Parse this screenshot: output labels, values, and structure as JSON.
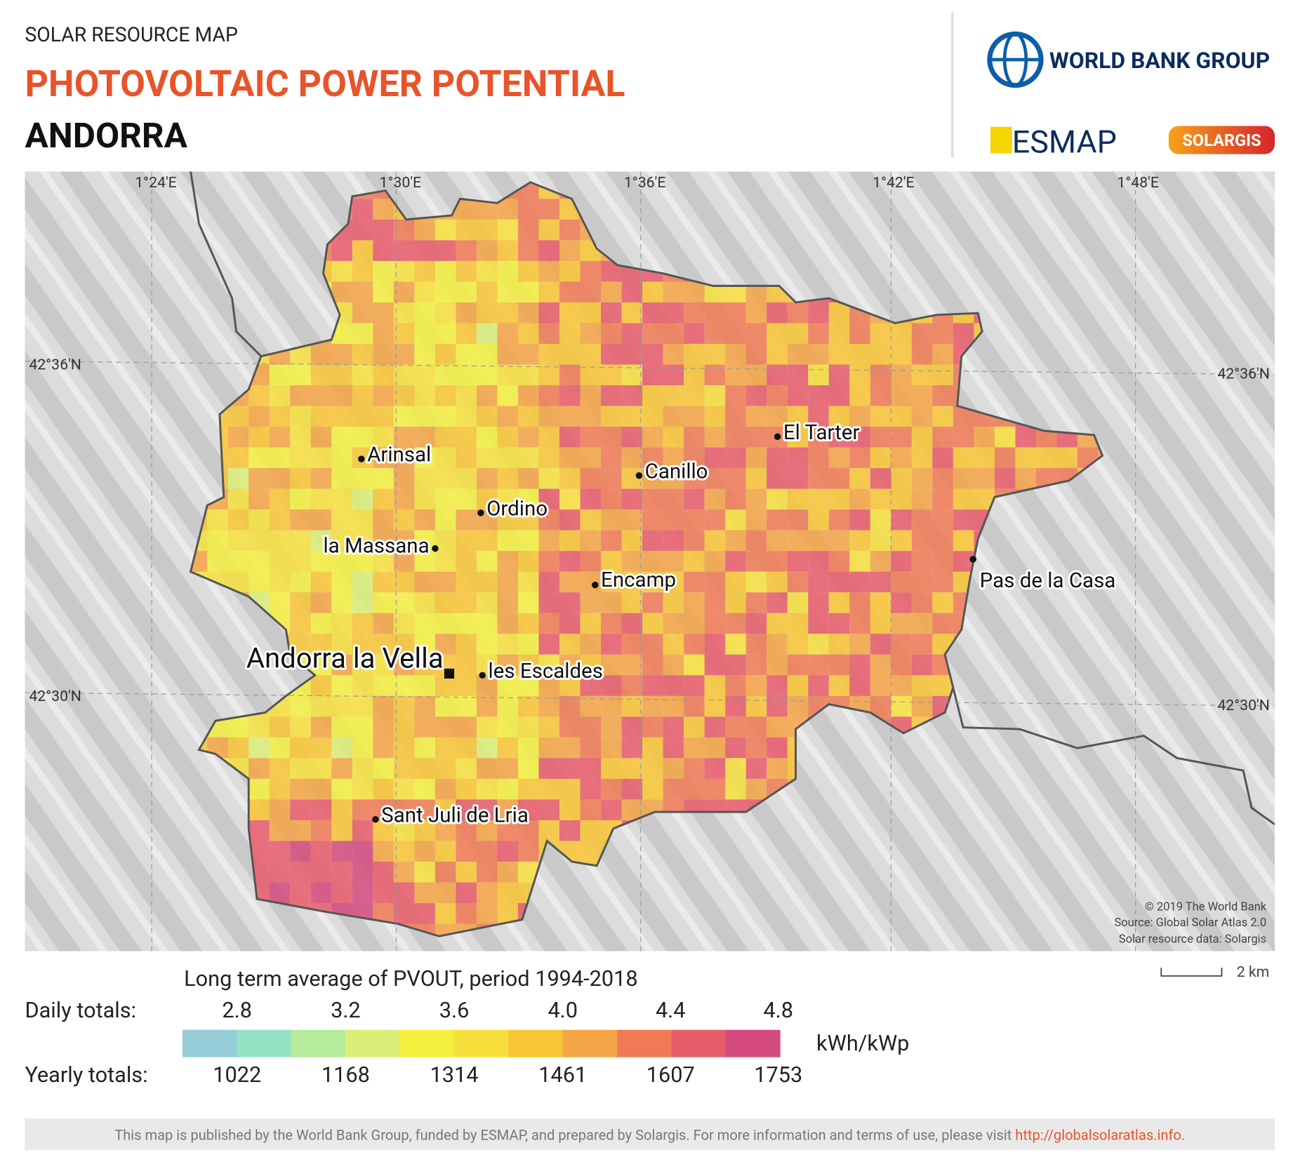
{
  "header": {
    "kicker": "SOLAR RESOURCE MAP",
    "title": "PHOTOVOLTAIC POWER POTENTIAL",
    "country": "ANDORRA"
  },
  "logos": {
    "world_bank": "WORLD BANK GROUP",
    "esmap": "ESMAP",
    "solargis": "SOLARGIS"
  },
  "map": {
    "lon_labels": [
      "1°24'E",
      "1°30'E",
      "1°36'E",
      "1°42'E",
      "1°48'E"
    ],
    "lat_labels": [
      "42°36'N",
      "42°30'N"
    ],
    "places": [
      "El Tarter",
      "Arinsal",
      "Canillo",
      "Ordino",
      "la Massana",
      "Encamp",
      "Pas de la Casa",
      "les Escaldes",
      "Sant Juli de Lria"
    ],
    "capital": "Andorra la Vella",
    "attribution": [
      "© 2019 The World Bank",
      "Source: Global Solar Atlas 2.0",
      "Solar resource data: Solargis"
    ],
    "scale": "2 km"
  },
  "legend": {
    "title": "Long term average of PVOUT, period 1994-2018",
    "daily_label": "Daily totals:",
    "daily": [
      "2.8",
      "3.2",
      "3.6",
      "4.0",
      "4.4",
      "4.8"
    ],
    "yearly_label": "Yearly totals:",
    "yearly": [
      "1022",
      "1168",
      "1314",
      "1461",
      "1607",
      "1753"
    ],
    "unit": "kWh/kWp"
  },
  "footer": {
    "text": "This map is published by the World Bank Group, funded by ESMAP, and prepared by Solargis. For more information and terms of use, please visit ",
    "link": "http://globalsolaratlas.info",
    "end": "."
  }
}
